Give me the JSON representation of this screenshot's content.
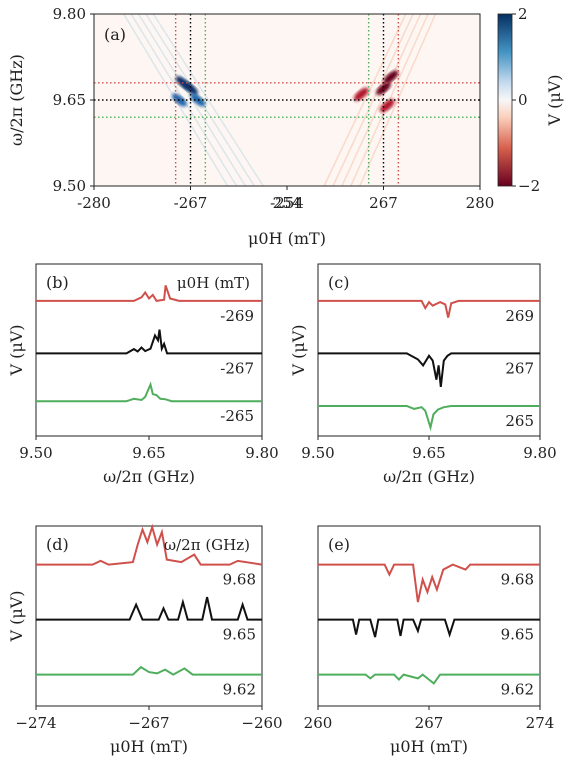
{
  "chart_data": [
    {
      "panel": "(a)",
      "type": "heatmap",
      "xlabel": "μ0H (mT)",
      "ylabel": "ω/2π (GHz)",
      "x_ticks": [
        "-280",
        "-267",
        "-254",
        "254",
        "267",
        "280"
      ],
      "y_ticks": [
        "9.80",
        "9.65",
        "9.50"
      ],
      "x_segments": [
        [
          -280,
          -254
        ],
        [
          254,
          280
        ]
      ],
      "ylim": [
        9.5,
        9.8
      ],
      "colorbar": {
        "label": "V (μV)",
        "ticks": [
          "2",
          "0",
          "−2"
        ],
        "range": [
          -2,
          2
        ],
        "colors": [
          "#67001f",
          "#ffffff",
          "#053061"
        ]
      },
      "ref_lines": {
        "horizontal": [
          {
            "y": 9.68,
            "color": "#d0504c"
          },
          {
            "y": 9.65,
            "color": "#000000"
          },
          {
            "y": 9.62,
            "color": "#4fae5c"
          }
        ],
        "vertical": [
          {
            "x": -269,
            "color": "#d0504c"
          },
          {
            "x": -267,
            "color": "#000000"
          },
          {
            "x": -265,
            "color": "#4fae5c"
          },
          {
            "x": 265,
            "color": "#4fae5c"
          },
          {
            "x": 267,
            "color": "#000000"
          },
          {
            "x": 269,
            "color": "#d0504c"
          }
        ]
      },
      "features": [
        {
          "x": -268,
          "y": 9.68,
          "value": 2.0
        },
        {
          "x": -267,
          "y": 9.67,
          "value": 1.6
        },
        {
          "x": -268.5,
          "y": 9.65,
          "value": 1.2
        },
        {
          "x": -266,
          "y": 9.65,
          "value": 1.0
        },
        {
          "x": 267,
          "y": 9.67,
          "value": -2.0
        },
        {
          "x": 268,
          "y": 9.69,
          "value": -1.6
        },
        {
          "x": 264,
          "y": 9.66,
          "value": -1.4
        },
        {
          "x": 267.5,
          "y": 9.64,
          "value": -1.2
        }
      ]
    },
    {
      "panel": "(b)",
      "type": "line",
      "xlabel": "ω/2π (GHz)",
      "ylabel": "V (μV)",
      "xlim": [
        9.5,
        9.8
      ],
      "x_ticks": [
        "9.50",
        "9.65",
        "9.80"
      ],
      "legend_title": "μ0H (mT)",
      "series": [
        {
          "name": "-269",
          "color": "#d0504c",
          "offset": 2.2,
          "points": [
            [
              9.5,
              0
            ],
            [
              9.63,
              0
            ],
            [
              9.64,
              0.15
            ],
            [
              9.645,
              0.35
            ],
            [
              9.65,
              0.1
            ],
            [
              9.655,
              0.25
            ],
            [
              9.66,
              0
            ],
            [
              9.67,
              0.05
            ],
            [
              9.672,
              0.65
            ],
            [
              9.678,
              0.1
            ],
            [
              9.69,
              0
            ],
            [
              9.8,
              0
            ]
          ]
        },
        {
          "name": "-267",
          "color": "#111111",
          "offset": 0,
          "points": [
            [
              9.5,
              0
            ],
            [
              9.62,
              0
            ],
            [
              9.63,
              0.18
            ],
            [
              9.635,
              0.08
            ],
            [
              9.64,
              0.25
            ],
            [
              9.645,
              0.1
            ],
            [
              9.652,
              0.2
            ],
            [
              9.658,
              0.75
            ],
            [
              9.662,
              0.55
            ],
            [
              9.664,
              1.0
            ],
            [
              9.667,
              0.2
            ],
            [
              9.67,
              0.4
            ],
            [
              9.674,
              0
            ],
            [
              9.8,
              0
            ]
          ]
        },
        {
          "name": "-265",
          "color": "#4fae5c",
          "offset": -2.0,
          "points": [
            [
              9.5,
              0
            ],
            [
              9.62,
              0
            ],
            [
              9.63,
              0.1
            ],
            [
              9.64,
              0.05
            ],
            [
              9.645,
              0.18
            ],
            [
              9.652,
              0.7
            ],
            [
              9.655,
              0.3
            ],
            [
              9.66,
              0.25
            ],
            [
              9.665,
              0.1
            ],
            [
              9.672,
              0.08
            ],
            [
              9.68,
              0
            ],
            [
              9.8,
              0
            ]
          ]
        }
      ]
    },
    {
      "panel": "(c)",
      "type": "line",
      "xlabel": "ω/2π (GHz)",
      "ylabel": "V (μV)",
      "xlim": [
        9.5,
        9.8
      ],
      "x_ticks": [
        "9.50",
        "9.65",
        "9.80"
      ],
      "series": [
        {
          "name": "269",
          "color": "#d0504c",
          "offset": 2.2,
          "points": [
            [
              9.5,
              0
            ],
            [
              9.64,
              0
            ],
            [
              9.645,
              -0.3
            ],
            [
              9.65,
              -0.05
            ],
            [
              9.655,
              -0.2
            ],
            [
              9.665,
              -0.05
            ],
            [
              9.672,
              -0.15
            ],
            [
              9.676,
              -0.7
            ],
            [
              9.68,
              -0.1
            ],
            [
              9.69,
              0
            ],
            [
              9.8,
              0
            ]
          ]
        },
        {
          "name": "267",
          "color": "#111111",
          "offset": 0,
          "points": [
            [
              9.5,
              0
            ],
            [
              9.62,
              0
            ],
            [
              9.635,
              -0.25
            ],
            [
              9.642,
              -0.5
            ],
            [
              9.65,
              -0.1
            ],
            [
              9.655,
              -0.3
            ],
            [
              9.66,
              -1.1
            ],
            [
              9.663,
              -0.5
            ],
            [
              9.666,
              -1.4
            ],
            [
              9.67,
              -0.3
            ],
            [
              9.675,
              -0.1
            ],
            [
              9.68,
              0
            ],
            [
              9.8,
              0
            ]
          ]
        },
        {
          "name": "265",
          "color": "#4fae5c",
          "offset": -2.2,
          "points": [
            [
              9.5,
              0
            ],
            [
              9.62,
              0
            ],
            [
              9.63,
              -0.12
            ],
            [
              9.64,
              -0.05
            ],
            [
              9.645,
              -0.2
            ],
            [
              9.652,
              -0.9
            ],
            [
              9.656,
              -0.35
            ],
            [
              9.662,
              -0.15
            ],
            [
              9.67,
              -0.05
            ],
            [
              9.68,
              0
            ],
            [
              9.8,
              0
            ]
          ]
        }
      ]
    },
    {
      "panel": "(d)",
      "type": "line",
      "xlabel": "μ0H (mT)",
      "ylabel": "V (μV)",
      "xlim": [
        -274,
        -260
      ],
      "x_ticks": [
        "−274",
        "−267",
        "−260"
      ],
      "legend_title": "ω/2π (GHz)",
      "series": [
        {
          "name": "9.68",
          "color": "#d0504c",
          "offset": 2.2,
          "points": [
            [
              -274,
              0
            ],
            [
              -270.5,
              0
            ],
            [
              -270,
              0.15
            ],
            [
              -269.5,
              0
            ],
            [
              -268,
              0.1
            ],
            [
              -267.7,
              0.8
            ],
            [
              -267.4,
              1.4
            ],
            [
              -267.1,
              0.9
            ],
            [
              -266.8,
              1.5
            ],
            [
              -266.5,
              0.8
            ],
            [
              -266.2,
              1.3
            ],
            [
              -265.9,
              0.2
            ],
            [
              -265,
              0.1
            ],
            [
              -264.2,
              0.4
            ],
            [
              -263.8,
              0
            ],
            [
              -262,
              0
            ],
            [
              -261.5,
              0.15
            ],
            [
              -260,
              0
            ]
          ]
        },
        {
          "name": "9.65",
          "color": "#111111",
          "offset": 0,
          "points": [
            [
              -274,
              0
            ],
            [
              -268.2,
              0
            ],
            [
              -267.8,
              0.6
            ],
            [
              -267.4,
              0
            ],
            [
              -266.4,
              0
            ],
            [
              -266.1,
              0.45
            ],
            [
              -265.8,
              0
            ],
            [
              -265.2,
              0
            ],
            [
              -264.9,
              0.7
            ],
            [
              -264.6,
              0
            ],
            [
              -263.7,
              0
            ],
            [
              -263.4,
              0.9
            ],
            [
              -263.1,
              0
            ],
            [
              -261.5,
              0
            ],
            [
              -261.2,
              0.6
            ],
            [
              -260.9,
              0
            ],
            [
              -260,
              0
            ]
          ]
        },
        {
          "name": "9.62",
          "color": "#4fae5c",
          "offset": -2.2,
          "points": [
            [
              -274,
              0
            ],
            [
              -268,
              0
            ],
            [
              -267.5,
              0.3
            ],
            [
              -267,
              0.1
            ],
            [
              -266.5,
              0.05
            ],
            [
              -266,
              0.2
            ],
            [
              -265.5,
              0
            ],
            [
              -264.8,
              0.25
            ],
            [
              -264.3,
              0
            ],
            [
              -262.5,
              0
            ],
            [
              -260,
              0
            ]
          ]
        }
      ]
    },
    {
      "panel": "(e)",
      "type": "line",
      "xlabel": "μ0H (mT)",
      "ylabel": "",
      "xlim": [
        260,
        274
      ],
      "x_ticks": [
        "260",
        "267",
        "274"
      ],
      "series": [
        {
          "name": "9.68",
          "color": "#d0504c",
          "offset": 2.2,
          "points": [
            [
              260,
              0
            ],
            [
              264.2,
              0
            ],
            [
              264.5,
              -0.4
            ],
            [
              264.8,
              0
            ],
            [
              266,
              0
            ],
            [
              266.3,
              -1.5
            ],
            [
              266.6,
              -0.6
            ],
            [
              266.9,
              -1.1
            ],
            [
              267.2,
              -0.5
            ],
            [
              267.5,
              -1.0
            ],
            [
              267.9,
              -0.2
            ],
            [
              268.5,
              0
            ],
            [
              269.3,
              -0.2
            ],
            [
              269.6,
              0
            ],
            [
              274,
              0
            ]
          ]
        },
        {
          "name": "9.65",
          "color": "#111111",
          "offset": 0,
          "points": [
            [
              260,
              0
            ],
            [
              262.2,
              0
            ],
            [
              262.4,
              -0.6
            ],
            [
              262.6,
              0
            ],
            [
              263.3,
              0
            ],
            [
              263.6,
              -0.7
            ],
            [
              263.8,
              0
            ],
            [
              265,
              0
            ],
            [
              265.2,
              -0.65
            ],
            [
              265.4,
              0
            ],
            [
              266,
              0
            ],
            [
              266.3,
              -0.45
            ],
            [
              266.5,
              0
            ],
            [
              268,
              0
            ],
            [
              268.3,
              -0.6
            ],
            [
              268.6,
              0
            ],
            [
              274,
              0
            ]
          ]
        },
        {
          "name": "9.62",
          "color": "#4fae5c",
          "offset": -2.2,
          "points": [
            [
              260,
              0
            ],
            [
              263,
              0
            ],
            [
              263.3,
              -0.15
            ],
            [
              263.6,
              0
            ],
            [
              264.8,
              0
            ],
            [
              265.1,
              -0.2
            ],
            [
              265.4,
              0
            ],
            [
              266.3,
              -0.15
            ],
            [
              266.6,
              0
            ],
            [
              267,
              -0.2
            ],
            [
              267.3,
              -0.35
            ],
            [
              267.7,
              0
            ],
            [
              274,
              0
            ]
          ]
        }
      ]
    }
  ]
}
